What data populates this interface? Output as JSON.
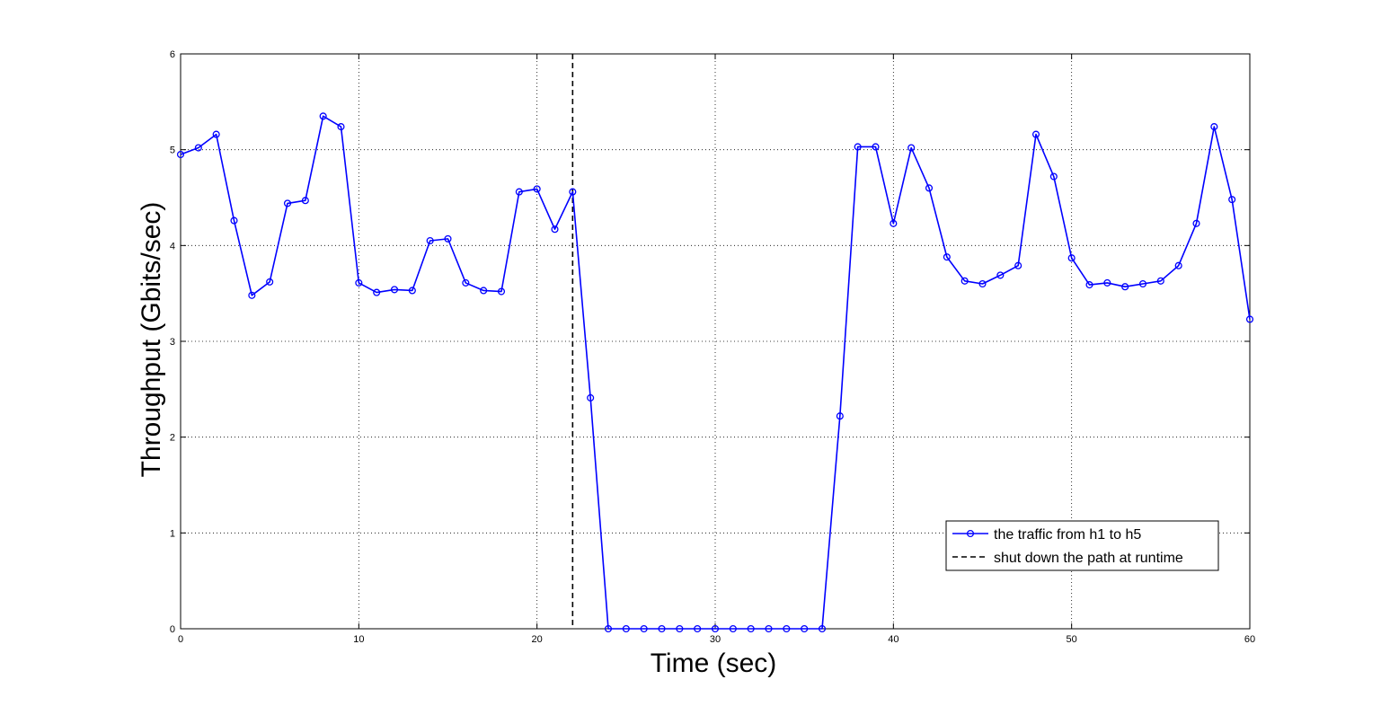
{
  "chart_data": {
    "type": "line",
    "xlabel": "Time (sec)",
    "ylabel": "Throughput (Gbits/sec)",
    "xlim": [
      0,
      60
    ],
    "ylim": [
      0,
      6
    ],
    "xticks": [
      0,
      10,
      20,
      30,
      40,
      50,
      60
    ],
    "yticks": [
      0,
      1,
      2,
      3,
      4,
      5,
      6
    ],
    "grid": true,
    "legend_position": "bottom-right",
    "series": [
      {
        "name": "the traffic from h1 to h5",
        "color": "#0000ff",
        "marker": "circle",
        "x": [
          0,
          1,
          2,
          3,
          4,
          5,
          6,
          7,
          8,
          9,
          10,
          11,
          12,
          13,
          14,
          15,
          16,
          17,
          18,
          19,
          20,
          21,
          22,
          23,
          24,
          25,
          26,
          27,
          28,
          29,
          30,
          31,
          32,
          33,
          34,
          35,
          36,
          37,
          38,
          39,
          40,
          41,
          42,
          43,
          44,
          45,
          46,
          47,
          48,
          49,
          50,
          51,
          52,
          53,
          54,
          55,
          56,
          57,
          58,
          59,
          60
        ],
        "y": [
          4.95,
          5.02,
          5.16,
          4.26,
          3.48,
          3.62,
          4.44,
          4.47,
          5.35,
          5.24,
          3.61,
          3.51,
          3.54,
          3.53,
          4.05,
          4.07,
          3.61,
          3.53,
          3.52,
          4.56,
          4.59,
          4.17,
          4.56,
          2.41,
          0,
          0,
          0,
          0,
          0,
          0,
          0,
          0,
          0,
          0,
          0,
          0,
          0,
          2.22,
          5.03,
          5.03,
          4.23,
          5.02,
          4.6,
          3.88,
          3.63,
          3.6,
          3.69,
          3.79,
          5.16,
          4.72,
          3.87,
          3.59,
          3.61,
          3.57,
          3.6,
          3.63,
          3.79,
          4.23,
          5.24,
          4.48,
          3.23
        ]
      }
    ],
    "annotations": [
      {
        "type": "vertical-line",
        "name": "shut down the path at runtime",
        "x": 22,
        "style": "dashed",
        "color": "#000000"
      }
    ]
  }
}
